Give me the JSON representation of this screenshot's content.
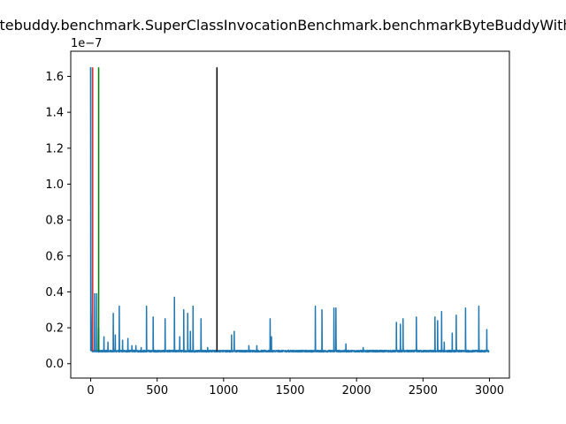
{
  "chart_data": {
    "type": "line",
    "title": "net.bytebuddy.benchmark.SuperClassInvocationBenchmark.benchmarkByteBuddyWithPrefix",
    "xlabel": "",
    "ylabel": "",
    "offset_text": "1e−7",
    "xlim": [
      -150,
      3150
    ],
    "ylim": [
      -8e-09,
      1.74e-07
    ],
    "x_ticks": [
      0,
      500,
      1000,
      1500,
      2000,
      2500,
      3000
    ],
    "x_tick_labels": [
      "0",
      "500",
      "1000",
      "1500",
      "2000",
      "2500",
      "3000"
    ],
    "y_ticks": [
      0.0,
      2e-08,
      4e-08,
      6e-08,
      8e-08,
      1e-07,
      1.2e-07,
      1.4e-07,
      1.6e-07
    ],
    "y_tick_labels": [
      "0.0",
      "0.2",
      "0.4",
      "0.6",
      "0.8",
      "1.0",
      "1.2",
      "1.4",
      "1.6"
    ],
    "grid": false,
    "series": [
      {
        "color": "#1f77b4",
        "n_points": 3000,
        "baseline": 7e-09,
        "start_values": [
          1.65e-07,
          1.13e-07,
          5e-08,
          3e-08,
          2.5e-08,
          1.5e-08,
          1e-08,
          8e-09
        ],
        "spikes": [
          [
            30,
            3.9e-08
          ],
          [
            45,
            3.9e-08
          ],
          [
            60,
            2e-08
          ],
          [
            100,
            1.5e-08
          ],
          [
            130,
            1.2e-08
          ],
          [
            170,
            2.8e-08
          ],
          [
            185,
            1.6e-08
          ],
          [
            215,
            3.2e-08
          ],
          [
            240,
            1.3e-08
          ],
          [
            280,
            1.4e-08
          ],
          [
            310,
            1e-08
          ],
          [
            340,
            1e-08
          ],
          [
            380,
            9e-09
          ],
          [
            420,
            3.2e-08
          ],
          [
            470,
            2.6e-08
          ],
          [
            560,
            2.5e-08
          ],
          [
            630,
            3.7e-08
          ],
          [
            670,
            1.5e-08
          ],
          [
            700,
            3e-08
          ],
          [
            730,
            2.8e-08
          ],
          [
            750,
            1.8e-08
          ],
          [
            770,
            3.2e-08
          ],
          [
            830,
            2.5e-08
          ],
          [
            880,
            9e-09
          ],
          [
            1060,
            1.6e-08
          ],
          [
            1080,
            1.8e-08
          ],
          [
            1190,
            1e-08
          ],
          [
            1250,
            1e-08
          ],
          [
            1350,
            2.5e-08
          ],
          [
            1360,
            1.5e-08
          ],
          [
            1690,
            3.2e-08
          ],
          [
            1740,
            3e-08
          ],
          [
            1830,
            3.1e-08
          ],
          [
            1845,
            3.1e-08
          ],
          [
            1920,
            1.1e-08
          ],
          [
            2050,
            9e-09
          ],
          [
            2300,
            2.3e-08
          ],
          [
            2330,
            2.2e-08
          ],
          [
            2350,
            2.5e-08
          ],
          [
            2450,
            2.6e-08
          ],
          [
            2590,
            2.6e-08
          ],
          [
            2610,
            2.4e-08
          ],
          [
            2640,
            2.9e-08
          ],
          [
            2660,
            1.2e-08
          ],
          [
            2720,
            1.7e-08
          ],
          [
            2750,
            2.7e-08
          ],
          [
            2820,
            3.1e-08
          ],
          [
            2920,
            3.2e-08
          ],
          [
            2980,
            1.9e-08
          ]
        ]
      }
    ],
    "vlines": [
      {
        "x": 0,
        "ymin": 7e-09,
        "ymax": 1.65e-07,
        "color": "#1f77b4"
      },
      {
        "x": 15,
        "ymin": 7e-09,
        "ymax": 1.65e-07,
        "color": "#d62728"
      },
      {
        "x": 60,
        "ymin": 7e-09,
        "ymax": 1.65e-07,
        "color": "#008000"
      },
      {
        "x": 950,
        "ymin": 7e-09,
        "ymax": 1.65e-07,
        "color": "#000000"
      }
    ]
  }
}
